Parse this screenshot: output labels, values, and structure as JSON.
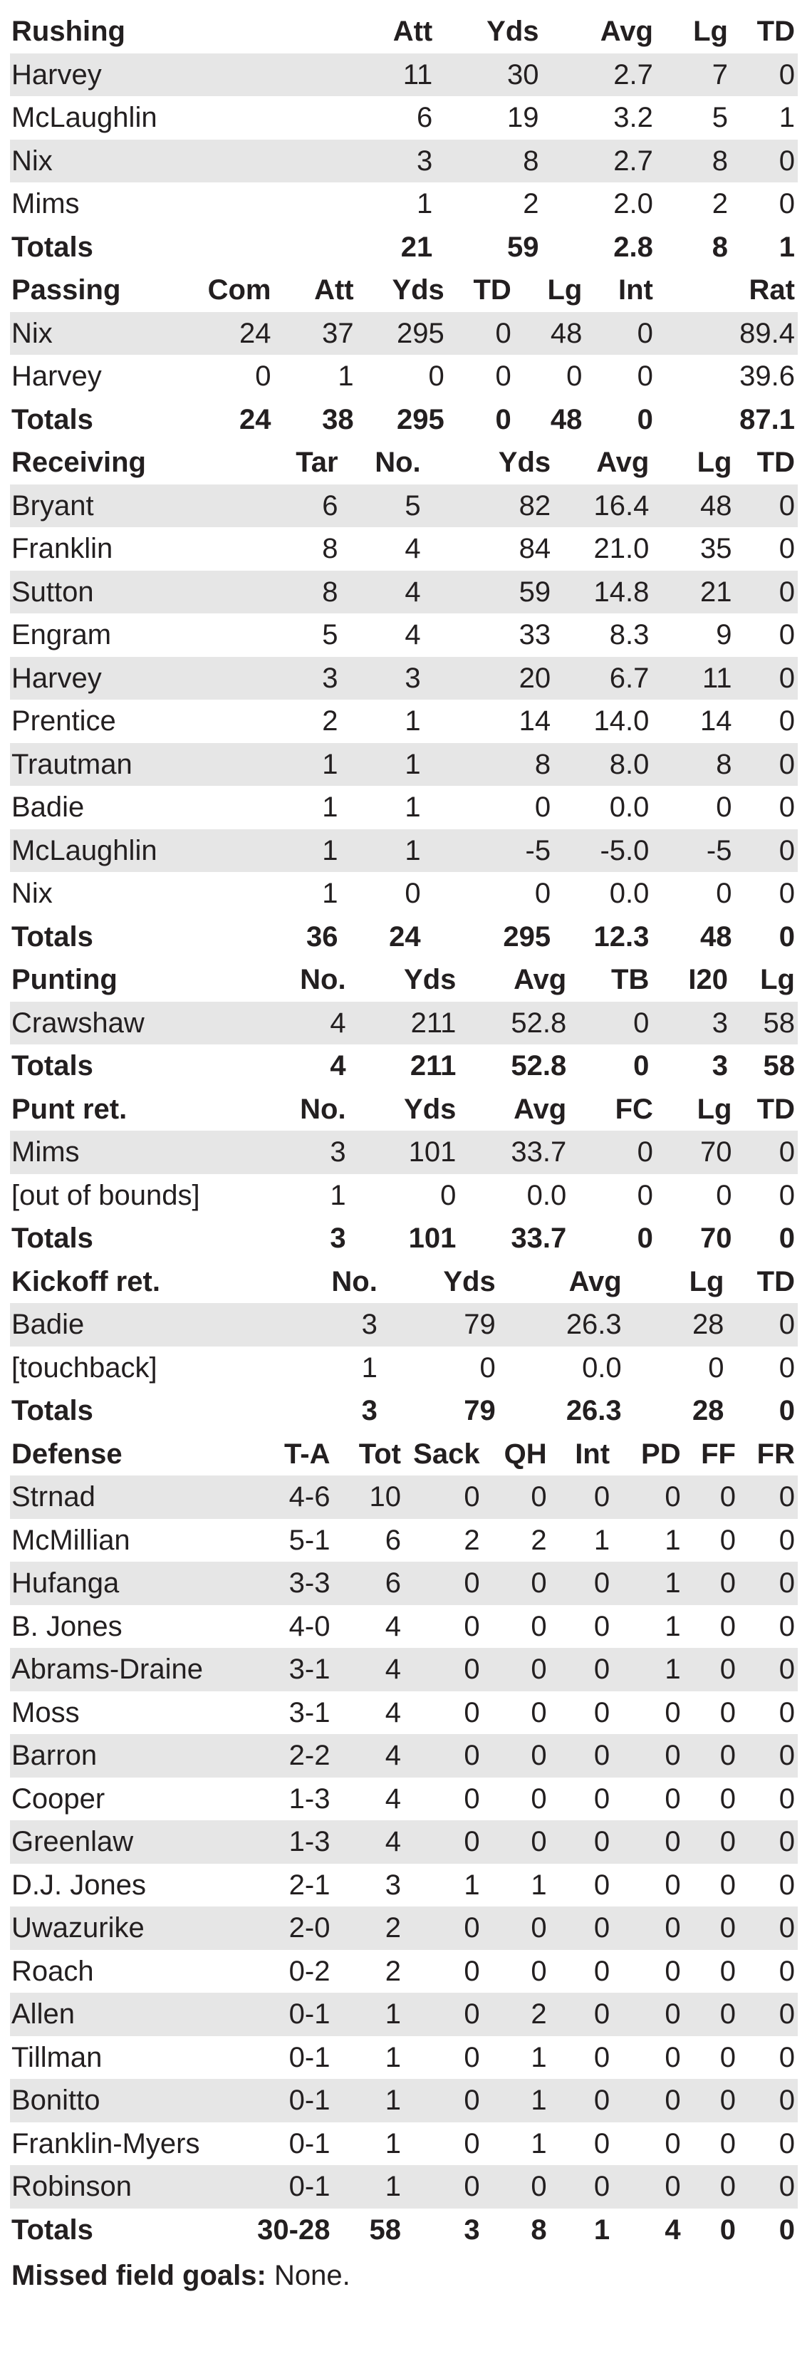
{
  "rushing": {
    "headers": [
      "Rushing",
      "Att",
      "Yds",
      "Avg",
      "Lg",
      "TD"
    ],
    "rows": [
      [
        "Harvey",
        "11",
        "30",
        "2.7",
        "7",
        "0"
      ],
      [
        "McLaughlin",
        "6",
        "19",
        "3.2",
        "5",
        "1"
      ],
      [
        "Nix",
        "3",
        "8",
        "2.7",
        "8",
        "0"
      ],
      [
        "Mims",
        "1",
        "2",
        "2.0",
        "2",
        "0"
      ]
    ],
    "totals": [
      "Totals",
      "21",
      "59",
      "2.8",
      "8",
      "1"
    ]
  },
  "passing": {
    "headers": [
      "Passing",
      "Com",
      "Att",
      "Yds",
      "TD",
      "Lg",
      "Int",
      "Rat"
    ],
    "rows": [
      [
        "Nix",
        "24",
        "37",
        "295",
        "0",
        "48",
        "0",
        "89.4"
      ],
      [
        "Harvey",
        "0",
        "1",
        "0",
        "0",
        "0",
        "0",
        "39.6"
      ]
    ],
    "totals": [
      "Totals",
      "24",
      "38",
      "295",
      "0",
      "48",
      "0",
      "87.1"
    ]
  },
  "receiving": {
    "headers": [
      "Receiving",
      "Tar",
      "No.",
      "Yds",
      "Avg",
      "Lg",
      "TD"
    ],
    "rows": [
      [
        "Bryant",
        "6",
        "5",
        "82",
        "16.4",
        "48",
        "0"
      ],
      [
        "Franklin",
        "8",
        "4",
        "84",
        "21.0",
        "35",
        "0"
      ],
      [
        "Sutton",
        "8",
        "4",
        "59",
        "14.8",
        "21",
        "0"
      ],
      [
        "Engram",
        "5",
        "4",
        "33",
        "8.3",
        "9",
        "0"
      ],
      [
        "Harvey",
        "3",
        "3",
        "20",
        "6.7",
        "11",
        "0"
      ],
      [
        "Prentice",
        "2",
        "1",
        "14",
        "14.0",
        "14",
        "0"
      ],
      [
        "Trautman",
        "1",
        "1",
        "8",
        "8.0",
        "8",
        "0"
      ],
      [
        "Badie",
        "1",
        "1",
        "0",
        "0.0",
        "0",
        "0"
      ],
      [
        "McLaughlin",
        "1",
        "1",
        "-5",
        "-5.0",
        "-5",
        "0"
      ],
      [
        "Nix",
        "1",
        "0",
        "0",
        "0.0",
        "0",
        "0"
      ]
    ],
    "totals": [
      "Totals",
      "36",
      "24",
      "295",
      "12.3",
      "48",
      "0"
    ]
  },
  "punting": {
    "headers": [
      "Punting",
      "No.",
      "Yds",
      "Avg",
      "TB",
      "I20",
      "Lg"
    ],
    "rows": [
      [
        "Crawshaw",
        "4",
        "211",
        "52.8",
        "0",
        "3",
        "58"
      ]
    ],
    "totals": [
      "Totals",
      "4",
      "211",
      "52.8",
      "0",
      "3",
      "58"
    ]
  },
  "punt_ret": {
    "headers": [
      "Punt ret.",
      "No.",
      "Yds",
      "Avg",
      "FC",
      "Lg",
      "TD"
    ],
    "rows": [
      [
        "Mims",
        "3",
        "101",
        "33.7",
        "0",
        "70",
        "0"
      ],
      [
        "[out of bounds]",
        "1",
        "0",
        "0.0",
        "0",
        "0",
        "0"
      ]
    ],
    "totals": [
      "Totals",
      "3",
      "101",
      "33.7",
      "0",
      "70",
      "0"
    ]
  },
  "kickoff_ret": {
    "headers": [
      "Kickoff ret.",
      "No.",
      "Yds",
      "Avg",
      "Lg",
      "TD"
    ],
    "rows": [
      [
        "Badie",
        "3",
        "79",
        "26.3",
        "28",
        "0"
      ],
      [
        "[touchback]",
        "1",
        "0",
        "0.0",
        "0",
        "0"
      ]
    ],
    "totals": [
      "Totals",
      "3",
      "79",
      "26.3",
      "28",
      "0"
    ]
  },
  "defense": {
    "headers": [
      "Defense",
      "T-A",
      "Tot",
      "Sack",
      "QH",
      "Int",
      "PD",
      "FF",
      "FR"
    ],
    "rows": [
      [
        "Strnad",
        "4-6",
        "10",
        "0",
        "0",
        "0",
        "0",
        "0",
        "0"
      ],
      [
        "McMillian",
        "5-1",
        "6",
        "2",
        "2",
        "1",
        "1",
        "0",
        "0"
      ],
      [
        "Hufanga",
        "3-3",
        "6",
        "0",
        "0",
        "0",
        "1",
        "0",
        "0"
      ],
      [
        "B. Jones",
        "4-0",
        "4",
        "0",
        "0",
        "0",
        "1",
        "0",
        "0"
      ],
      [
        "Abrams-Draine",
        "3-1",
        "4",
        "0",
        "0",
        "0",
        "1",
        "0",
        "0"
      ],
      [
        "Moss",
        "3-1",
        "4",
        "0",
        "0",
        "0",
        "0",
        "0",
        "0"
      ],
      [
        "Barron",
        "2-2",
        "4",
        "0",
        "0",
        "0",
        "0",
        "0",
        "0"
      ],
      [
        "Cooper",
        "1-3",
        "4",
        "0",
        "0",
        "0",
        "0",
        "0",
        "0"
      ],
      [
        "Greenlaw",
        "1-3",
        "4",
        "0",
        "0",
        "0",
        "0",
        "0",
        "0"
      ],
      [
        "D.J. Jones",
        "2-1",
        "3",
        "1",
        "1",
        "0",
        "0",
        "0",
        "0"
      ],
      [
        "Uwazurike",
        "2-0",
        "2",
        "0",
        "0",
        "0",
        "0",
        "0",
        "0"
      ],
      [
        "Roach",
        "0-2",
        "2",
        "0",
        "0",
        "0",
        "0",
        "0",
        "0"
      ],
      [
        "Allen",
        "0-1",
        "1",
        "0",
        "2",
        "0",
        "0",
        "0",
        "0"
      ],
      [
        "Tillman",
        "0-1",
        "1",
        "0",
        "1",
        "0",
        "0",
        "0",
        "0"
      ],
      [
        "Bonitto",
        "0-1",
        "1",
        "0",
        "1",
        "0",
        "0",
        "0",
        "0"
      ],
      [
        "Franklin-Myers",
        "0-1",
        "1",
        "0",
        "1",
        "0",
        "0",
        "0",
        "0"
      ],
      [
        "Robinson",
        "0-1",
        "1",
        "0",
        "0",
        "0",
        "0",
        "0",
        "0"
      ]
    ],
    "totals": [
      "Totals",
      "30-28",
      "58",
      "3",
      "8",
      "1",
      "4",
      "0",
      "0"
    ]
  },
  "footer": {
    "label": "Missed field goals:",
    "value": " None."
  }
}
